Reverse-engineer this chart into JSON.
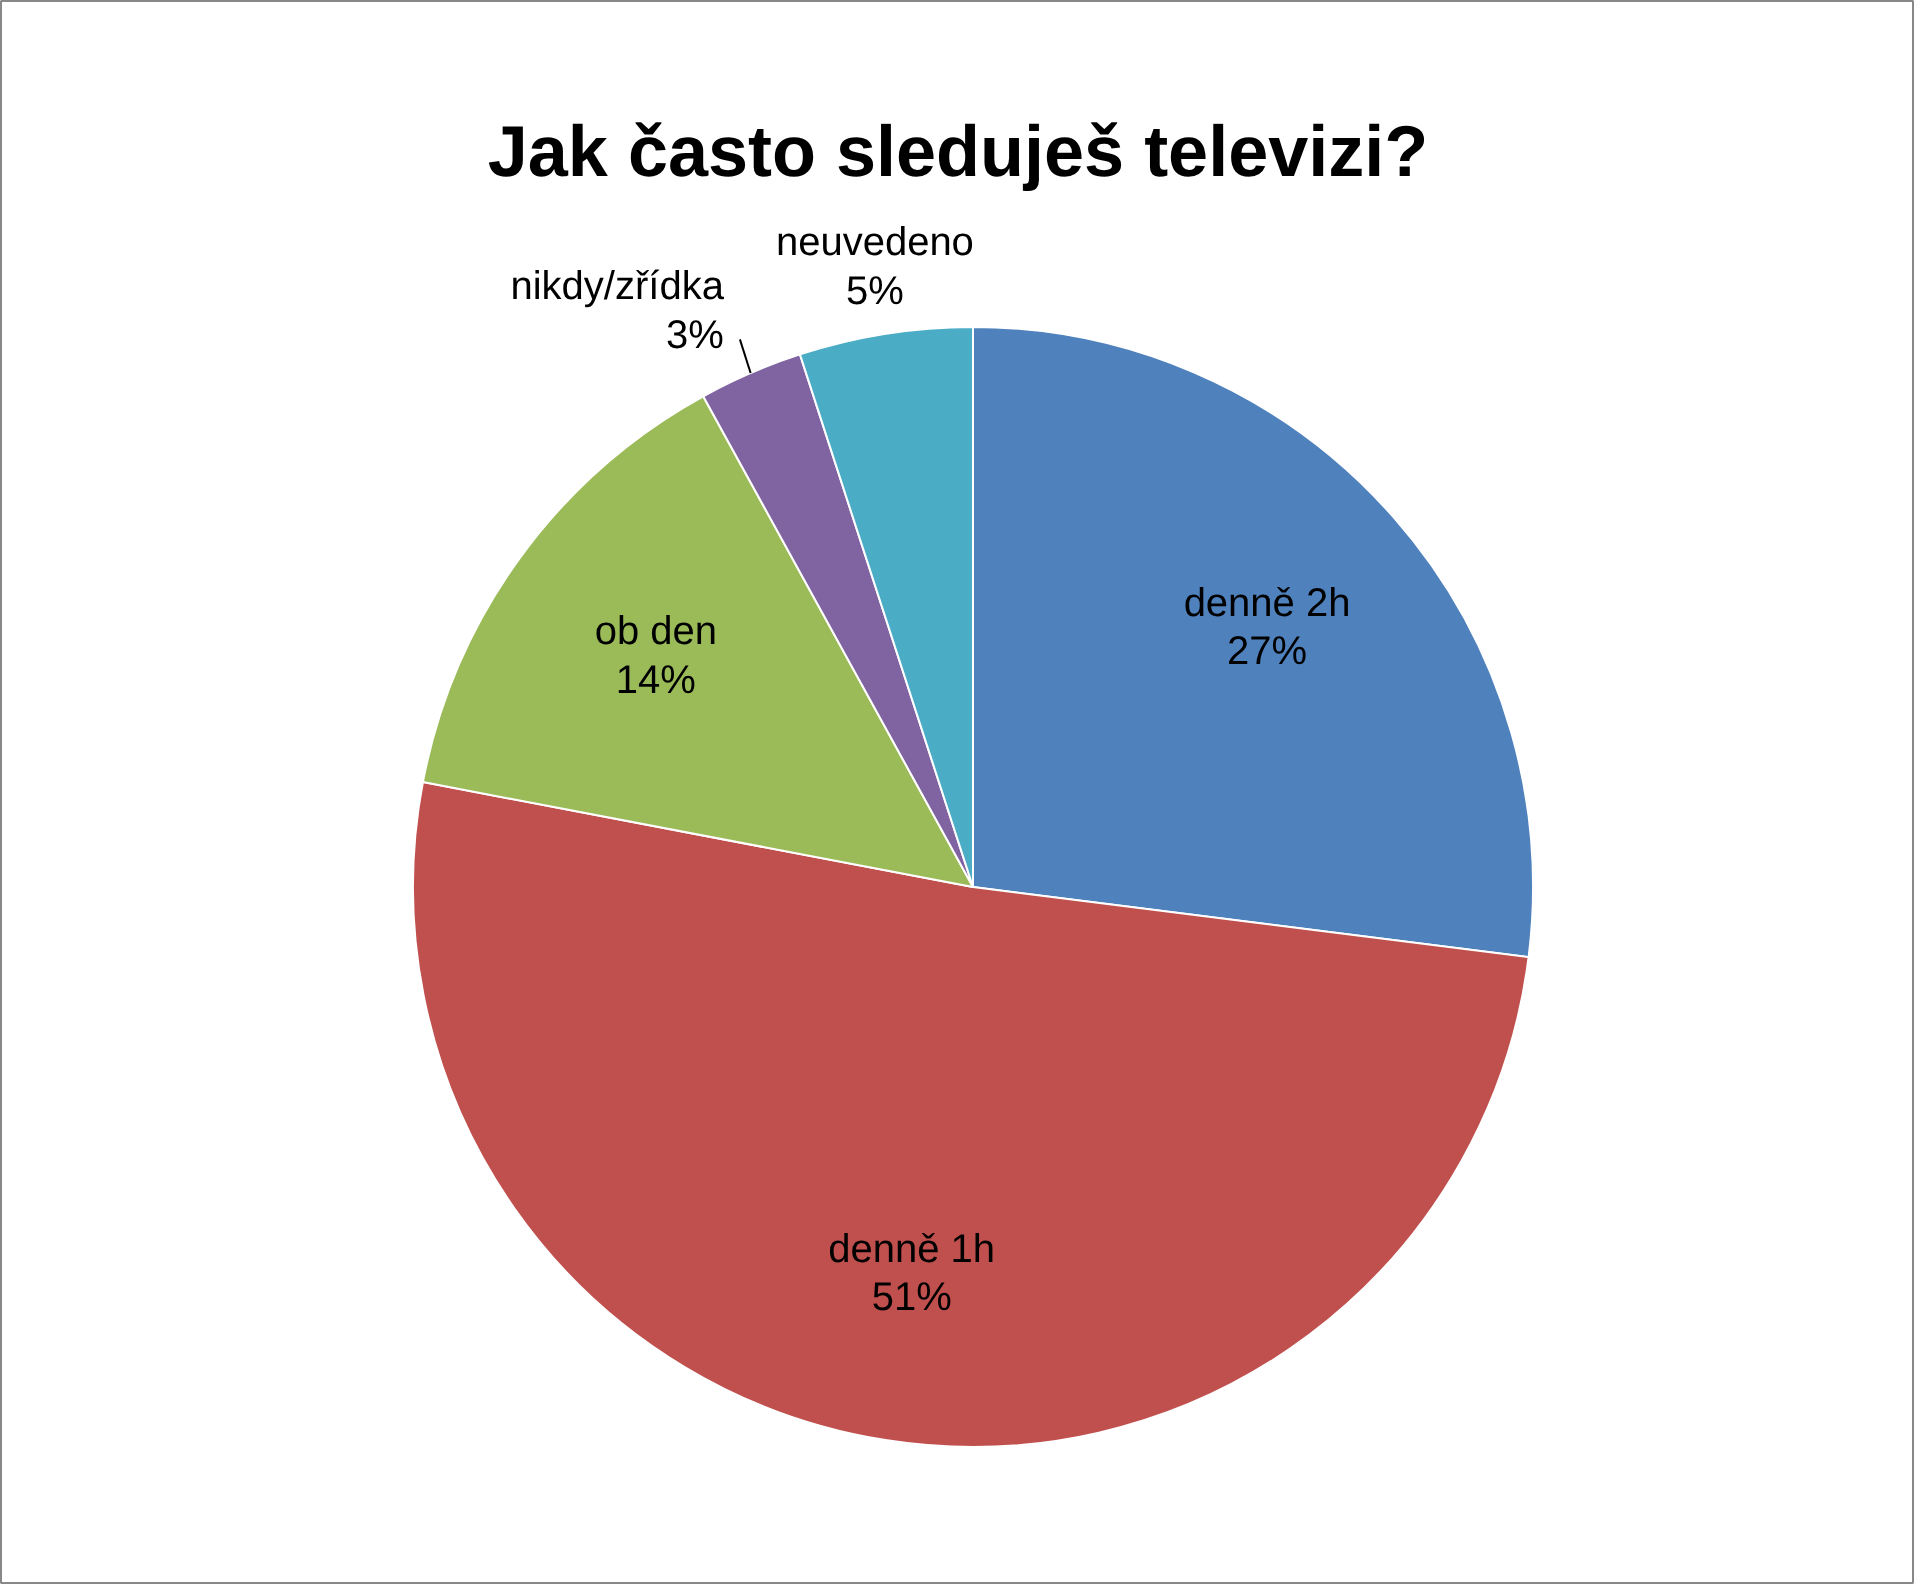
{
  "chart_data": {
    "type": "pie",
    "title": "Jak často sleduješ televizi?",
    "categories": [
      "denně 2h",
      "denně 1h",
      "ob den",
      "nikdy/zřídka",
      "neuvedeno"
    ],
    "values": [
      27,
      51,
      14,
      3,
      5
    ],
    "colors": [
      "#4f81bd",
      "#c0504d",
      "#9bbb59",
      "#8064a2",
      "#4bacc6"
    ],
    "value_labels": [
      "27%",
      "51%",
      "14%",
      "3%",
      "5%"
    ]
  }
}
